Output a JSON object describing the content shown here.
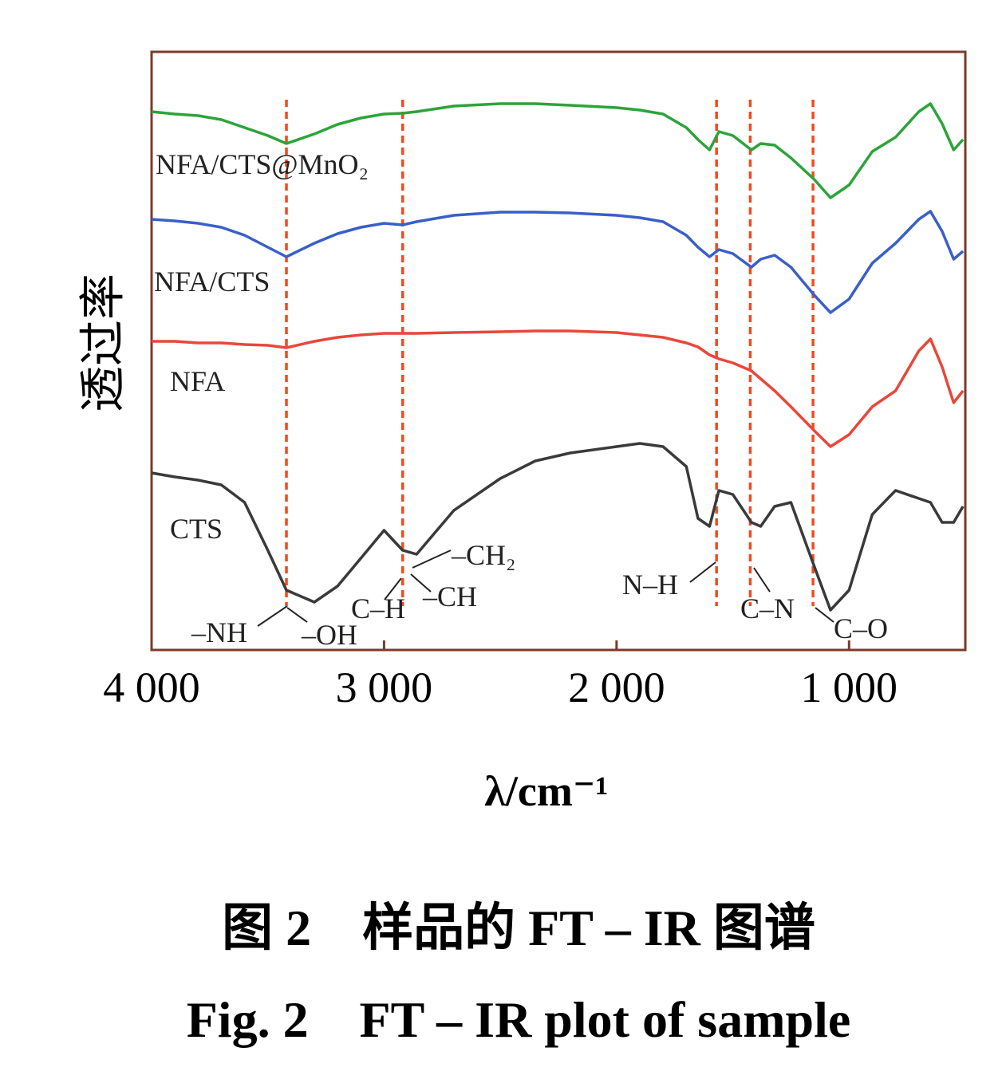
{
  "chart_data": {
    "type": "line",
    "y_label": "透过率",
    "x_label": "λ/cm⁻¹",
    "xlim": [
      4000,
      500
    ],
    "xticks": [
      {
        "value": 4000,
        "label": "4 000"
      },
      {
        "value": 3000,
        "label": "3 000"
      },
      {
        "value": 2000,
        "label": "2 000"
      },
      {
        "value": 1000,
        "label": "1 000"
      }
    ],
    "ylim": [
      0,
      750
    ],
    "x": [
      4000,
      3900,
      3800,
      3700,
      3600,
      3500,
      3420,
      3300,
      3200,
      3100,
      3000,
      2920,
      2860,
      2700,
      2500,
      2350,
      2200,
      2000,
      1900,
      1800,
      1700,
      1650,
      1600,
      1560,
      1500,
      1420,
      1380,
      1320,
      1250,
      1150,
      1080,
      1000,
      900,
      800,
      700,
      650,
      600,
      550,
      510
    ],
    "series": [
      {
        "name": "NFA/CTS@MnO₂",
        "color": "#2ca43a",
        "values": [
          675,
          672,
          670,
          665,
          655,
          645,
          635,
          647,
          659,
          667,
          672,
          673,
          675,
          682,
          685,
          685,
          683,
          680,
          677,
          672,
          655,
          640,
          627,
          650,
          645,
          627,
          635,
          633,
          617,
          590,
          567,
          583,
          625,
          643,
          675,
          685,
          660,
          627,
          640
        ]
      },
      {
        "name": "NFA/CTS",
        "color": "#3a5fc8",
        "values": [
          540,
          538,
          535,
          530,
          520,
          505,
          493,
          510,
          522,
          530,
          535,
          533,
          537,
          545,
          549,
          549,
          548,
          545,
          542,
          537,
          520,
          505,
          493,
          502,
          497,
          480,
          490,
          495,
          480,
          445,
          423,
          440,
          485,
          510,
          540,
          550,
          525,
          490,
          500
        ]
      },
      {
        "name": "NFA",
        "color": "#e8473a",
        "values": [
          387,
          387,
          385,
          385,
          383,
          382,
          379,
          387,
          392,
          395,
          397,
          397,
          397,
          398,
          399,
          400,
          400,
          398,
          395,
          392,
          385,
          380,
          370,
          365,
          360,
          350,
          340,
          325,
          305,
          275,
          255,
          270,
          305,
          325,
          375,
          390,
          355,
          310,
          325
        ]
      },
      {
        "name": "CTS",
        "color": "#3a3a3a",
        "values": [
          222,
          217,
          213,
          207,
          185,
          125,
          75,
          60,
          80,
          115,
          150,
          125,
          120,
          175,
          215,
          237,
          247,
          255,
          259,
          255,
          230,
          165,
          155,
          200,
          195,
          160,
          155,
          180,
          185,
          105,
          50,
          75,
          170,
          200,
          190,
          185,
          160,
          160,
          180
        ]
      }
    ],
    "reference_lines": {
      "color": "#f04a20",
      "values": [
        3420,
        2920,
        1570,
        1425,
        1155
      ]
    },
    "annotations": [
      "–NH",
      "–OH",
      "C–H",
      "–CH₂",
      "–CH",
      "N–H",
      "C–N",
      "C–O"
    ],
    "caption_cn": "图 2　样品的 FT – IR 图谱",
    "caption_en": "Fig. 2　FT – IR plot of sample"
  }
}
